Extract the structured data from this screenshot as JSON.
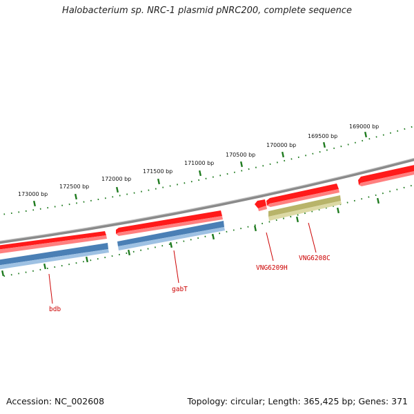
{
  "title": "Halobacterium sp. NRC-1 plasmid pNRC200, complete sequence",
  "footer": {
    "accession": "Accession: NC_002608",
    "summary": "Topology: circular; Length: 365,425 bp; Genes: 371"
  },
  "colors": {
    "backbone": "#8a8a8a",
    "forward_feature": "#ff1a1a",
    "reverse_feature": "#4a7fb5",
    "highlight_feature": "#b8b46a",
    "ticks": "#1e7a1e",
    "gene_label": "#cc0000"
  },
  "ticks": [
    {
      "label": "169000 bp"
    },
    {
      "label": "169500 bp"
    },
    {
      "label": "170000 bp"
    },
    {
      "label": "170500 bp"
    },
    {
      "label": "171000 bp"
    },
    {
      "label": "171500 bp"
    },
    {
      "label": "172000 bp"
    },
    {
      "label": "172500 bp"
    },
    {
      "label": "173000 bp"
    }
  ],
  "genes": [
    {
      "name": "bdb"
    },
    {
      "name": "gabT"
    },
    {
      "name": "VNG6209H"
    },
    {
      "name": "VNG6208C"
    }
  ]
}
